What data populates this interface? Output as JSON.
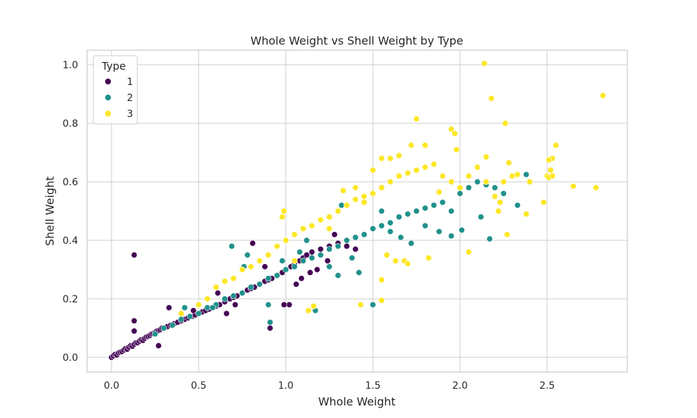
{
  "chart_data": {
    "type": "scatter",
    "title": "Whole Weight vs Shell Weight by Type",
    "xlabel": "Whole Weight",
    "ylabel": "Shell Weight",
    "xlim": [
      -0.14,
      2.96
    ],
    "ylim": [
      -0.05,
      1.05
    ],
    "xticks": [
      0.0,
      0.5,
      1.0,
      1.5,
      2.0,
      2.5
    ],
    "xtick_labels": [
      "0.0",
      "0.5",
      "1.0",
      "1.5",
      "2.0",
      "2.5"
    ],
    "yticks": [
      0.0,
      0.2,
      0.4,
      0.6,
      0.8,
      1.0
    ],
    "ytick_labels": [
      "0.0",
      "0.2",
      "0.4",
      "0.6",
      "0.8",
      "1.0"
    ],
    "grid": true,
    "legend": {
      "title": "Type",
      "placement": "top-left"
    },
    "series": [
      {
        "name": "1",
        "color": "#440154",
        "points": [
          [
            0.0,
            0.0
          ],
          [
            0.01,
            0.005
          ],
          [
            0.02,
            0.01
          ],
          [
            0.03,
            0.008
          ],
          [
            0.04,
            0.015
          ],
          [
            0.05,
            0.018
          ],
          [
            0.06,
            0.02
          ],
          [
            0.07,
            0.025
          ],
          [
            0.08,
            0.03
          ],
          [
            0.09,
            0.028
          ],
          [
            0.1,
            0.035
          ],
          [
            0.11,
            0.04
          ],
          [
            0.12,
            0.038
          ],
          [
            0.13,
            0.045
          ],
          [
            0.14,
            0.05
          ],
          [
            0.15,
            0.05
          ],
          [
            0.16,
            0.055
          ],
          [
            0.17,
            0.06
          ],
          [
            0.18,
            0.058
          ],
          [
            0.19,
            0.065
          ],
          [
            0.2,
            0.07
          ],
          [
            0.21,
            0.072
          ],
          [
            0.22,
            0.075
          ],
          [
            0.23,
            0.08
          ],
          [
            0.24,
            0.082
          ],
          [
            0.25,
            0.085
          ],
          [
            0.26,
            0.09
          ],
          [
            0.27,
            0.092
          ],
          [
            0.28,
            0.095
          ],
          [
            0.29,
            0.1
          ],
          [
            0.3,
            0.1
          ],
          [
            0.32,
            0.105
          ],
          [
            0.34,
            0.11
          ],
          [
            0.36,
            0.115
          ],
          [
            0.38,
            0.12
          ],
          [
            0.4,
            0.125
          ],
          [
            0.42,
            0.13
          ],
          [
            0.44,
            0.135
          ],
          [
            0.46,
            0.14
          ],
          [
            0.48,
            0.145
          ],
          [
            0.5,
            0.15
          ],
          [
            0.52,
            0.155
          ],
          [
            0.54,
            0.16
          ],
          [
            0.56,
            0.165
          ],
          [
            0.58,
            0.17
          ],
          [
            0.6,
            0.175
          ],
          [
            0.62,
            0.18
          ],
          [
            0.65,
            0.19
          ],
          [
            0.68,
            0.2
          ],
          [
            0.7,
            0.205
          ],
          [
            0.72,
            0.21
          ],
          [
            0.75,
            0.22
          ],
          [
            0.78,
            0.23
          ],
          [
            0.8,
            0.235
          ],
          [
            0.82,
            0.24
          ],
          [
            0.85,
            0.25
          ],
          [
            0.88,
            0.26
          ],
          [
            0.9,
            0.265
          ],
          [
            0.92,
            0.27
          ],
          [
            0.95,
            0.28
          ],
          [
            0.98,
            0.29
          ],
          [
            1.0,
            0.3
          ],
          [
            1.03,
            0.31
          ],
          [
            1.05,
            0.32
          ],
          [
            1.08,
            0.33
          ],
          [
            1.1,
            0.34
          ],
          [
            1.12,
            0.35
          ],
          [
            1.15,
            0.36
          ],
          [
            1.2,
            0.37
          ],
          [
            1.25,
            0.38
          ],
          [
            1.3,
            0.39
          ],
          [
            1.35,
            0.38
          ],
          [
            1.4,
            0.37
          ],
          [
            0.13,
            0.35
          ],
          [
            0.13,
            0.125
          ],
          [
            0.13,
            0.09
          ],
          [
            0.27,
            0.04
          ],
          [
            0.33,
            0.17
          ],
          [
            0.91,
            0.1
          ],
          [
            0.81,
            0.39
          ],
          [
            0.61,
            0.22
          ],
          [
            0.47,
            0.16
          ],
          [
            1.02,
            0.18
          ],
          [
            0.99,
            0.18
          ],
          [
            1.06,
            0.25
          ],
          [
            1.18,
            0.3
          ],
          [
            1.28,
            0.42
          ],
          [
            1.14,
            0.29
          ],
          [
            0.71,
            0.18
          ],
          [
            0.66,
            0.15
          ],
          [
            0.88,
            0.31
          ],
          [
            1.09,
            0.27
          ],
          [
            1.24,
            0.33
          ]
        ]
      },
      {
        "name": "2",
        "color": "#21918c",
        "points": [
          [
            0.3,
            0.1
          ],
          [
            0.35,
            0.11
          ],
          [
            0.4,
            0.13
          ],
          [
            0.45,
            0.14
          ],
          [
            0.5,
            0.15
          ],
          [
            0.55,
            0.17
          ],
          [
            0.6,
            0.18
          ],
          [
            0.65,
            0.2
          ],
          [
            0.7,
            0.21
          ],
          [
            0.75,
            0.22
          ],
          [
            0.8,
            0.24
          ],
          [
            0.85,
            0.25
          ],
          [
            0.9,
            0.27
          ],
          [
            0.95,
            0.28
          ],
          [
            1.0,
            0.3
          ],
          [
            1.05,
            0.31
          ],
          [
            1.1,
            0.33
          ],
          [
            1.15,
            0.34
          ],
          [
            1.2,
            0.35
          ],
          [
            1.25,
            0.37
          ],
          [
            1.3,
            0.38
          ],
          [
            1.35,
            0.4
          ],
          [
            1.4,
            0.41
          ],
          [
            1.45,
            0.42
          ],
          [
            1.5,
            0.44
          ],
          [
            1.55,
            0.45
          ],
          [
            1.6,
            0.46
          ],
          [
            1.65,
            0.48
          ],
          [
            1.7,
            0.49
          ],
          [
            1.75,
            0.5
          ],
          [
            1.8,
            0.51
          ],
          [
            1.85,
            0.52
          ],
          [
            1.9,
            0.53
          ],
          [
            1.95,
            0.5
          ],
          [
            2.0,
            0.56
          ],
          [
            2.05,
            0.58
          ],
          [
            2.1,
            0.6
          ],
          [
            2.15,
            0.59
          ],
          [
            2.2,
            0.58
          ],
          [
            2.25,
            0.56
          ],
          [
            0.69,
            0.38
          ],
          [
            0.91,
            0.12
          ],
          [
            0.9,
            0.18
          ],
          [
            1.17,
            0.16
          ],
          [
            1.5,
            0.18
          ],
          [
            1.32,
            0.52
          ],
          [
            2.38,
            0.625
          ],
          [
            2.33,
            0.52
          ],
          [
            2.17,
            0.405
          ],
          [
            2.01,
            0.435
          ],
          [
            1.95,
            0.415
          ],
          [
            1.88,
            0.43
          ],
          [
            0.78,
            0.35
          ],
          [
            0.58,
            0.17
          ],
          [
            0.42,
            0.17
          ],
          [
            0.25,
            0.08
          ],
          [
            0.76,
            0.31
          ],
          [
            1.08,
            0.36
          ],
          [
            1.12,
            0.4
          ],
          [
            1.42,
            0.29
          ],
          [
            1.3,
            0.28
          ],
          [
            1.6,
            0.43
          ],
          [
            1.72,
            0.39
          ],
          [
            1.8,
            0.45
          ],
          [
            2.12,
            0.48
          ],
          [
            1.25,
            0.31
          ],
          [
            1.38,
            0.34
          ],
          [
            0.98,
            0.33
          ],
          [
            1.55,
            0.5
          ],
          [
            1.66,
            0.41
          ]
        ]
      },
      {
        "name": "3",
        "color": "#fde725",
        "points": [
          [
            0.4,
            0.15
          ],
          [
            0.5,
            0.18
          ],
          [
            0.55,
            0.2
          ],
          [
            0.6,
            0.24
          ],
          [
            0.65,
            0.26
          ],
          [
            0.7,
            0.27
          ],
          [
            0.75,
            0.3
          ],
          [
            0.8,
            0.31
          ],
          [
            0.85,
            0.33
          ],
          [
            0.9,
            0.35
          ],
          [
            0.95,
            0.38
          ],
          [
            1.0,
            0.4
          ],
          [
            1.05,
            0.42
          ],
          [
            1.1,
            0.44
          ],
          [
            1.15,
            0.45
          ],
          [
            1.2,
            0.47
          ],
          [
            1.25,
            0.48
          ],
          [
            1.3,
            0.5
          ],
          [
            1.35,
            0.52
          ],
          [
            1.4,
            0.54
          ],
          [
            1.45,
            0.55
          ],
          [
            1.5,
            0.56
          ],
          [
            1.55,
            0.58
          ],
          [
            1.6,
            0.6
          ],
          [
            1.65,
            0.62
          ],
          [
            1.7,
            0.63
          ],
          [
            1.75,
            0.64
          ],
          [
            1.8,
            0.65
          ],
          [
            1.85,
            0.66
          ],
          [
            1.9,
            0.62
          ],
          [
            1.95,
            0.6
          ],
          [
            2.0,
            0.58
          ],
          [
            2.05,
            0.62
          ],
          [
            2.1,
            0.65
          ],
          [
            2.15,
            0.6
          ],
          [
            2.2,
            0.55
          ],
          [
            2.25,
            0.6
          ],
          [
            2.3,
            0.62
          ],
          [
            2.4,
            0.6
          ],
          [
            2.5,
            0.62
          ],
          [
            2.14,
            1.005
          ],
          [
            2.82,
            0.895
          ],
          [
            2.18,
            0.885
          ],
          [
            2.26,
            0.8
          ],
          [
            1.75,
            0.815
          ],
          [
            1.95,
            0.78
          ],
          [
            1.97,
            0.765
          ],
          [
            1.72,
            0.725
          ],
          [
            1.8,
            0.725
          ],
          [
            2.55,
            0.725
          ],
          [
            2.53,
            0.68
          ],
          [
            2.51,
            0.675
          ],
          [
            2.52,
            0.64
          ],
          [
            2.51,
            0.615
          ],
          [
            2.53,
            0.62
          ],
          [
            2.65,
            0.585
          ],
          [
            2.78,
            0.58
          ],
          [
            2.48,
            0.53
          ],
          [
            2.38,
            0.49
          ],
          [
            2.22,
            0.5
          ],
          [
            1.98,
            0.71
          ],
          [
            1.9,
            0.62
          ],
          [
            1.82,
            0.34
          ],
          [
            1.68,
            0.33
          ],
          [
            1.63,
            0.33
          ],
          [
            1.58,
            0.35
          ],
          [
            1.55,
            0.265
          ],
          [
            1.55,
            0.195
          ],
          [
            1.43,
            0.18
          ],
          [
            1.13,
            0.16
          ],
          [
            1.16,
            0.175
          ],
          [
            0.98,
            0.48
          ],
          [
            0.99,
            0.5
          ],
          [
            1.7,
            0.32
          ],
          [
            2.05,
            0.36
          ],
          [
            2.23,
            0.53
          ],
          [
            2.27,
            0.42
          ],
          [
            1.4,
            0.58
          ],
          [
            1.5,
            0.64
          ],
          [
            1.6,
            0.68
          ],
          [
            1.65,
            0.69
          ],
          [
            1.55,
            0.68
          ],
          [
            1.88,
            0.565
          ],
          [
            2.15,
            0.685
          ],
          [
            2.28,
            0.665
          ],
          [
            2.33,
            0.625
          ],
          [
            1.33,
            0.57
          ],
          [
            1.45,
            0.53
          ],
          [
            1.25,
            0.44
          ],
          [
            1.05,
            0.33
          ]
        ]
      }
    ]
  }
}
